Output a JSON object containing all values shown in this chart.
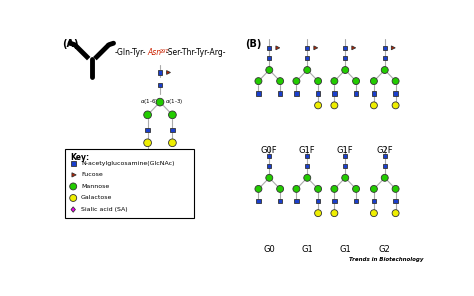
{
  "colors": {
    "glcnac": "#1a3fcc",
    "fucose": "#bb2200",
    "mannose": "#22cc00",
    "galactose": "#eeee00",
    "sialic": "#ee00ee",
    "line": "#aaaaaa",
    "asn_color": "#cc2200"
  },
  "key_items": [
    {
      "shape": "square",
      "color": "#1a3fcc",
      "label": "N-acetylglucosamine(GlcNAc)"
    },
    {
      "shape": "triangle",
      "color": "#bb2200",
      "label": "Fucose"
    },
    {
      "shape": "circle",
      "color": "#22cc00",
      "label": "Mannose"
    },
    {
      "shape": "circle",
      "color": "#eeee00",
      "label": "Galactose"
    },
    {
      "shape": "diamond",
      "color": "#ee00ee",
      "label": "Sialic acid (SA)"
    }
  ],
  "top_row_labels": [
    "G0F",
    "G1F",
    "G1F",
    "G2F"
  ],
  "bottom_row_labels": [
    "G0",
    "G1",
    "G1",
    "G2"
  ],
  "watermark": "Trends in Biotechnology"
}
